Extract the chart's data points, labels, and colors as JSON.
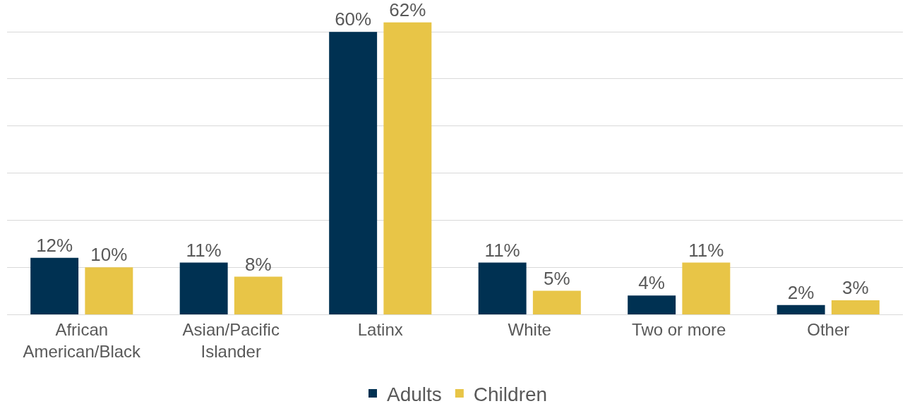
{
  "chart_data": {
    "type": "bar",
    "categories": [
      "African American/Black",
      "Asian/Pacific Islander",
      "Latinx",
      "White",
      "Two or more",
      "Other"
    ],
    "series": [
      {
        "name": "Adults",
        "color": "#003152",
        "values": [
          12,
          11,
          60,
          11,
          4,
          2
        ],
        "value_labels": [
          "12%",
          "11%",
          "60%",
          "11%",
          "4%",
          "2%"
        ]
      },
      {
        "name": "Children",
        "color": "#e8c547",
        "values": [
          10,
          8,
          62,
          5,
          11,
          3
        ],
        "value_labels": [
          "10%",
          "8%",
          "62%",
          "5%",
          "11%",
          "3%"
        ]
      }
    ],
    "grid": "y",
    "legend": "bottom",
    "tick_labels": "x"
  }
}
